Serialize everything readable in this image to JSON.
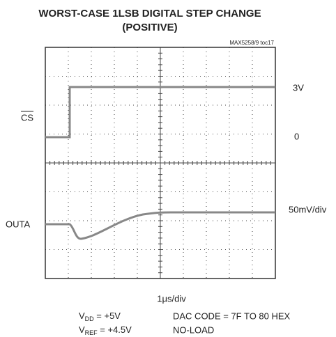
{
  "title": [
    "WORST-CASE 1LSB DIGITAL STEP CHANGE",
    "(POSITIVE)"
  ],
  "figure_id": "MAX5258/9 toc17",
  "left_labels": [
    "CS",
    "OUTA"
  ],
  "right_labels": [
    "3V",
    "0",
    "50mV/div"
  ],
  "timebase": "1μs/div",
  "conditions": [
    {
      "symbol": "V",
      "subscript": "DD",
      "text": " = +5V"
    },
    {
      "symbol": "V",
      "subscript": "REF",
      "text": " = +4.5V"
    }
  ],
  "notes": [
    "DAC CODE = 7F TO 80 HEX",
    "NO-LOAD"
  ]
}
